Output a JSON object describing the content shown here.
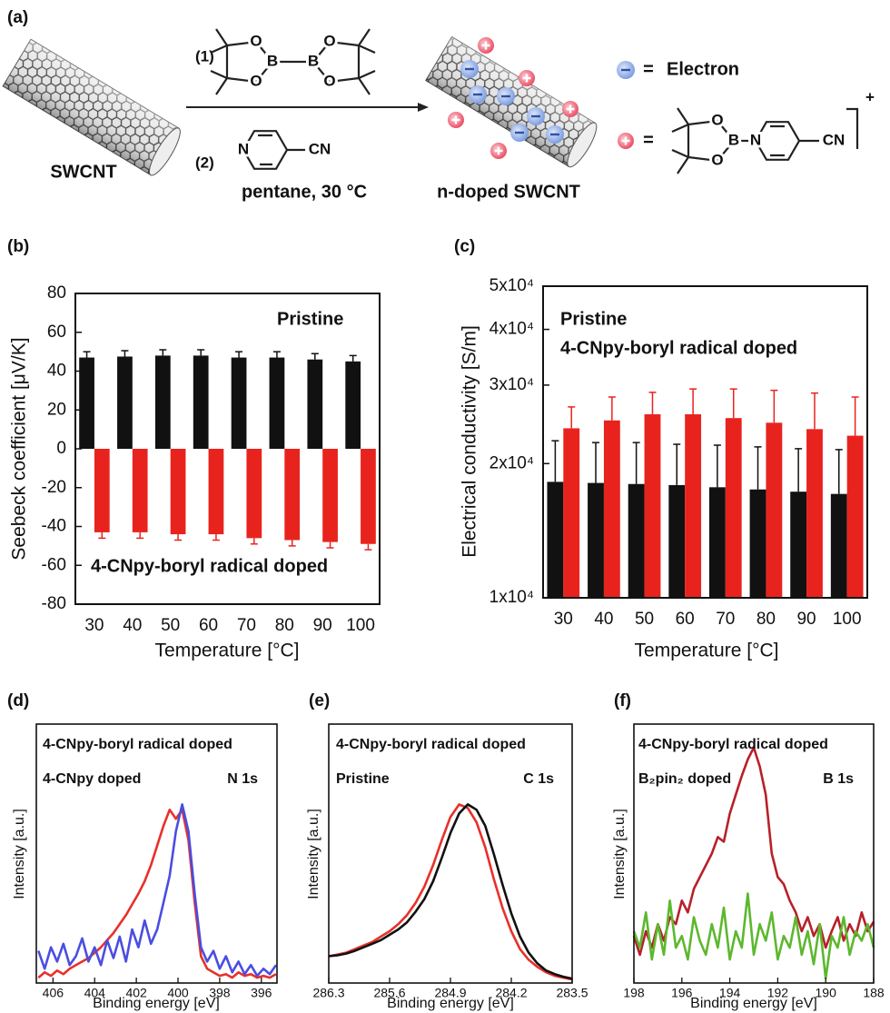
{
  "scheme": {
    "panel": "(a)",
    "step1": "(1)",
    "step2": "(2)",
    "start": "SWCNT",
    "conditions": "pentane, 30 °C",
    "product": "n-doped SWCNT",
    "equals": [
      "=",
      "="
    ],
    "electron": "Electron",
    "reagent1_atoms": [
      "O",
      "B",
      "O",
      "O",
      "B",
      "O"
    ],
    "reagent2_atoms": [
      "N",
      "CN"
    ],
    "cation_atoms": [
      "O",
      "B",
      "O",
      "N",
      "CN",
      "+"
    ]
  },
  "chart_data": [
    {
      "type": "bar",
      "panel": "(b)",
      "ylabel": "Seebeck coefficient [μV/K]",
      "xlabel": "Temperature [°C]",
      "categories": [
        "30",
        "40",
        "50",
        "60",
        "70",
        "80",
        "90",
        "100"
      ],
      "series": [
        {
          "name": "Pristine",
          "color": "#111111",
          "values": [
            47,
            47.5,
            48,
            48,
            47,
            47,
            46,
            45
          ],
          "errors": [
            3,
            3,
            3,
            3,
            3,
            3,
            3,
            3
          ]
        },
        {
          "name": "4-CNpy-boryl radical doped",
          "color": "#e8231e",
          "values": [
            -43,
            -43,
            -44,
            -44,
            -46,
            -47,
            -48,
            -49
          ],
          "errors": [
            3,
            3,
            3,
            3,
            3,
            3,
            3,
            3
          ]
        }
      ],
      "ylim": [
        -80,
        80
      ],
      "yticks": [
        -80,
        -60,
        -40,
        -20,
        0,
        20,
        40,
        60,
        80
      ]
    },
    {
      "type": "bar",
      "panel": "(c)",
      "ylabel": "Electrical conductivity [S/m]",
      "xlabel": "Temperature [°C]",
      "yscale": "log",
      "categories": [
        "30",
        "40",
        "50",
        "60",
        "70",
        "80",
        "90",
        "100"
      ],
      "series": [
        {
          "name": "Pristine",
          "color": "#111111",
          "values": [
            18200,
            18100,
            18000,
            17900,
            17700,
            17500,
            17300,
            17100
          ],
          "errors": [
            4300,
            4200,
            4300,
            4200,
            4300,
            4300,
            4300,
            4400
          ]
        },
        {
          "name": "4-CNpy-boryl radical doped",
          "color": "#e8231e",
          "values": [
            24000,
            25000,
            25800,
            25800,
            25300,
            24700,
            23900,
            23100
          ],
          "errors": [
            2800,
            3200,
            3100,
            3600,
            4100,
            4500,
            4900,
            5100
          ]
        }
      ],
      "ylim": [
        10000,
        50000
      ],
      "yticks": [
        {
          "value": 10000,
          "label": "1x10⁴"
        },
        {
          "value": 20000,
          "label": "2x10⁴"
        },
        {
          "value": 30000,
          "label": "3x10⁴"
        },
        {
          "value": 40000,
          "label": "4x10⁴"
        },
        {
          "value": 50000,
          "label": "5x10⁴"
        }
      ]
    },
    {
      "type": "line",
      "panel": "(d)",
      "ylabel": "Intensity [a.u.]",
      "xlabel": "Binding energy [eV]",
      "annotation": "N 1s",
      "x": [
        406.7,
        406.4,
        406.1,
        405.8,
        405.5,
        405.2,
        404.9,
        404.6,
        404.3,
        404.0,
        403.7,
        403.4,
        403.1,
        402.8,
        402.5,
        402.2,
        401.9,
        401.6,
        401.3,
        401.0,
        400.7,
        400.4,
        400.1,
        399.8,
        399.5,
        399.2,
        398.9,
        398.6,
        398.3,
        398.0,
        397.7,
        397.4,
        397.1,
        396.8,
        396.5,
        396.2,
        395.9,
        395.6,
        395.3
      ],
      "series": [
        {
          "name": "4-CNpy-boryl radical doped",
          "color": "#e8302a",
          "values": [
            0.03,
            0.06,
            0.04,
            0.07,
            0.05,
            0.08,
            0.1,
            0.12,
            0.14,
            0.17,
            0.2,
            0.24,
            0.28,
            0.33,
            0.38,
            0.44,
            0.5,
            0.57,
            0.66,
            0.77,
            0.88,
            0.97,
            0.92,
            0.97,
            0.8,
            0.45,
            0.15,
            0.08,
            0.06,
            0.04,
            0.05,
            0.03,
            0.06,
            0.04,
            0.05,
            0.03,
            0.04,
            0.03,
            0.05
          ]
        },
        {
          "name": "4-CNpy doped",
          "color": "#4a4ee0",
          "values": [
            0.18,
            0.08,
            0.2,
            0.12,
            0.22,
            0.1,
            0.15,
            0.25,
            0.12,
            0.2,
            0.1,
            0.24,
            0.14,
            0.26,
            0.12,
            0.3,
            0.2,
            0.35,
            0.22,
            0.3,
            0.45,
            0.6,
            0.85,
            1.0,
            0.85,
            0.5,
            0.2,
            0.12,
            0.18,
            0.08,
            0.15,
            0.06,
            0.12,
            0.05,
            0.1,
            0.04,
            0.08,
            0.05,
            0.1
          ]
        }
      ],
      "xlim": [
        406.8,
        395.25
      ],
      "xticks": [
        406,
        404,
        402,
        400,
        398,
        396
      ],
      "ylim": [
        0,
        1.45
      ]
    },
    {
      "type": "line",
      "panel": "(e)",
      "ylabel": "Intensity [a.u.]",
      "xlabel": "Binding energy [eV]",
      "annotation": "C 1s",
      "x": [
        286.3,
        286.2,
        286.1,
        286.0,
        285.9,
        285.8,
        285.7,
        285.6,
        285.5,
        285.4,
        285.3,
        285.2,
        285.1,
        285.0,
        284.9,
        284.8,
        284.7,
        284.6,
        284.5,
        284.4,
        284.3,
        284.2,
        284.1,
        284.0,
        283.9,
        283.8,
        283.7,
        283.6,
        283.5
      ],
      "series": [
        {
          "name": "4-CNpy-boryl radical doped",
          "color": "#e8302a",
          "values": [
            0.15,
            0.16,
            0.17,
            0.19,
            0.21,
            0.23,
            0.26,
            0.29,
            0.33,
            0.38,
            0.45,
            0.54,
            0.66,
            0.8,
            0.93,
            1.0,
            0.98,
            0.9,
            0.76,
            0.58,
            0.42,
            0.29,
            0.19,
            0.13,
            0.09,
            0.06,
            0.04,
            0.03,
            0.02
          ]
        },
        {
          "name": "Pristine",
          "color": "#111111",
          "values": [
            0.15,
            0.155,
            0.165,
            0.18,
            0.2,
            0.22,
            0.24,
            0.27,
            0.3,
            0.34,
            0.4,
            0.47,
            0.57,
            0.7,
            0.84,
            0.95,
            1.0,
            0.97,
            0.88,
            0.72,
            0.55,
            0.39,
            0.26,
            0.17,
            0.11,
            0.07,
            0.05,
            0.035,
            0.025
          ]
        }
      ],
      "xlim": [
        286.3,
        283.5
      ],
      "xticks": [
        286.3,
        285.6,
        284.9,
        284.2,
        283.5
      ],
      "ylim": [
        0,
        1.45
      ]
    },
    {
      "type": "line",
      "panel": "(f)",
      "ylabel": "Intensity [a.u.]",
      "xlabel": "Binding energy [eV]",
      "annotation": "B 1s",
      "x": [
        198,
        197.75,
        197.5,
        197.25,
        197,
        196.75,
        196.5,
        196.25,
        196,
        195.75,
        195.5,
        195.25,
        195,
        194.75,
        194.5,
        194.25,
        194,
        193.75,
        193.5,
        193.25,
        193,
        192.75,
        192.5,
        192.25,
        192,
        191.75,
        191.5,
        191.25,
        191,
        190.75,
        190.5,
        190.25,
        190,
        189.75,
        189.5,
        189.25,
        189,
        188.75,
        188.5,
        188.25,
        188
      ],
      "series": [
        {
          "name": "4-CNpy-boryl radical doped",
          "color": "#b8202a",
          "values": [
            0.2,
            0.12,
            0.22,
            0.15,
            0.25,
            0.18,
            0.28,
            0.25,
            0.35,
            0.3,
            0.4,
            0.45,
            0.5,
            0.55,
            0.62,
            0.6,
            0.72,
            0.8,
            0.88,
            0.95,
            1.0,
            0.92,
            0.8,
            0.55,
            0.45,
            0.42,
            0.35,
            0.3,
            0.22,
            0.28,
            0.2,
            0.25,
            0.15,
            0.22,
            0.28,
            0.18,
            0.25,
            0.2,
            0.3,
            0.22,
            0.26
          ]
        },
        {
          "name": "B₂pin₂ doped",
          "color": "#5cb82e",
          "values": [
            0.22,
            0.15,
            0.3,
            0.1,
            0.25,
            0.12,
            0.35,
            0.15,
            0.2,
            0.1,
            0.28,
            0.18,
            0.12,
            0.25,
            0.15,
            0.32,
            0.1,
            0.22,
            0.15,
            0.38,
            0.12,
            0.25,
            0.18,
            0.3,
            0.1,
            0.2,
            0.15,
            0.28,
            0.12,
            0.22,
            0.08,
            0.25,
            0.02,
            0.2,
            0.15,
            0.28,
            0.12,
            0.22,
            0.18,
            0.25,
            0.15
          ]
        }
      ],
      "xlim": [
        198,
        188
      ],
      "xticks": [
        198,
        196,
        194,
        192,
        190,
        188
      ],
      "ylim": [
        0,
        1.1
      ]
    }
  ]
}
